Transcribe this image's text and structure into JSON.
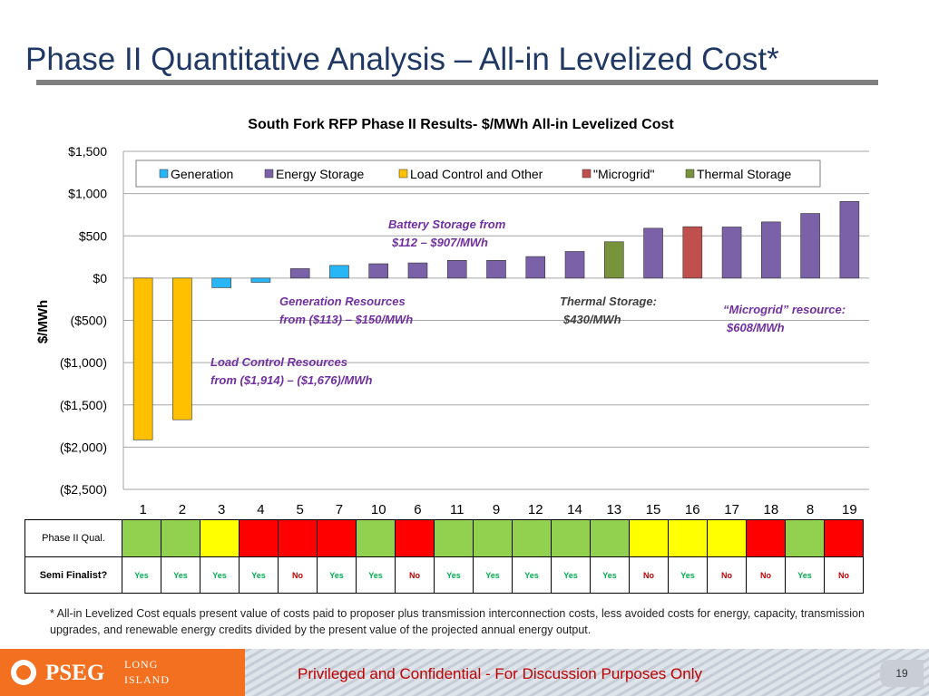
{
  "slide": {
    "title": "Phase II Quantitative Analysis – All-in Levelized Cost*",
    "footnote": "* All-in Levelized Cost equals present  value of costs paid to proposer plus transmission interconnection costs, less avoided costs for energy, capacity, transmission upgrades, and renewable energy credits divided by the present value of the projected annual energy output.",
    "confidential": "Privileged and Confidential - For Discussion Purposes Only",
    "page_number": "19",
    "logo": {
      "name": "PSEG",
      "sub_line1": "LONG",
      "sub_line2": "ISLAND"
    }
  },
  "chart_data": {
    "type": "bar",
    "title": "South Fork RFP Phase II Results- $/MWh All-in Levelized Cost",
    "ylabel": "$/MWh",
    "ylim": [
      -2500,
      1500
    ],
    "yticks": [
      1500,
      1000,
      500,
      0,
      -500,
      -1000,
      -1500,
      -2000,
      -2500
    ],
    "ytick_labels": [
      "$1,500",
      "$1,000",
      "$500",
      "$0",
      "($500)",
      "($1,000)",
      "($1,500)",
      "($2,000)",
      "($2,500)"
    ],
    "grid": true,
    "legend_position": "top",
    "legend": [
      {
        "name": "Generation",
        "color": "#29b6f6"
      },
      {
        "name": "Energy Storage",
        "color": "#7b61a8"
      },
      {
        "name": "Load Control and Other",
        "color": "#ffc000"
      },
      {
        "name": "\"Microgrid\"",
        "color": "#c0504d"
      },
      {
        "name": "Thermal Storage",
        "color": "#77933c"
      }
    ],
    "categories": [
      "1",
      "2",
      "3",
      "4",
      "5",
      "7",
      "10",
      "6",
      "11",
      "9",
      "12",
      "14",
      "13",
      "15",
      "16",
      "17",
      "18",
      "8",
      "19"
    ],
    "values": [
      -1914,
      -1676,
      -113,
      -50,
      112,
      150,
      170,
      180,
      210,
      210,
      255,
      315,
      430,
      590,
      608,
      605,
      665,
      765,
      907
    ],
    "bar_types": [
      "Load Control and Other",
      "Load Control and Other",
      "Generation",
      "Generation",
      "Energy Storage",
      "Generation",
      "Energy Storage",
      "Energy Storage",
      "Energy Storage",
      "Energy Storage",
      "Energy Storage",
      "Energy Storage",
      "Thermal Storage",
      "Energy Storage",
      "\"Microgrid\"",
      "Energy Storage",
      "Energy Storage",
      "Energy Storage",
      "Energy Storage"
    ],
    "annotations": [
      {
        "lines": [
          "Battery Storage from",
          "$112 – $907/MWh"
        ],
        "color": "#7030a0"
      },
      {
        "lines": [
          "Generation Resources",
          "from ($113) – $150/MWh"
        ],
        "color": "#7030a0"
      },
      {
        "lines": [
          "Thermal Storage:",
          "$430/MWh"
        ],
        "color": "#3f3f3f"
      },
      {
        "lines": [
          "“Microgrid” resource:",
          "$608/MWh"
        ],
        "color": "#7030a0"
      },
      {
        "lines": [
          "Load Control Resources",
          "from ($1,914) – ($1,676)/MWh"
        ],
        "color": "#7030a0"
      }
    ]
  },
  "table": {
    "row1_label": "Phase II Qual.",
    "row2_label": "Semi Finalist?",
    "qual_colors": [
      "#92d050",
      "#92d050",
      "#ffff00",
      "#ff0000",
      "#ff0000",
      "#ff0000",
      "#92d050",
      "#ff0000",
      "#92d050",
      "#92d050",
      "#92d050",
      "#92d050",
      "#92d050",
      "#ffff00",
      "#ffff00",
      "#ffff00",
      "#ff0000",
      "#92d050",
      "#ff0000"
    ],
    "semi_finalist": [
      "Yes",
      "Yes",
      "Yes",
      "Yes",
      "No",
      "Yes",
      "Yes",
      "No",
      "Yes",
      "Yes",
      "Yes",
      "Yes",
      "Yes",
      "No",
      "Yes",
      "No",
      "No",
      "Yes",
      "No"
    ],
    "yes_color": "#00b050",
    "no_color": "#c00000"
  }
}
